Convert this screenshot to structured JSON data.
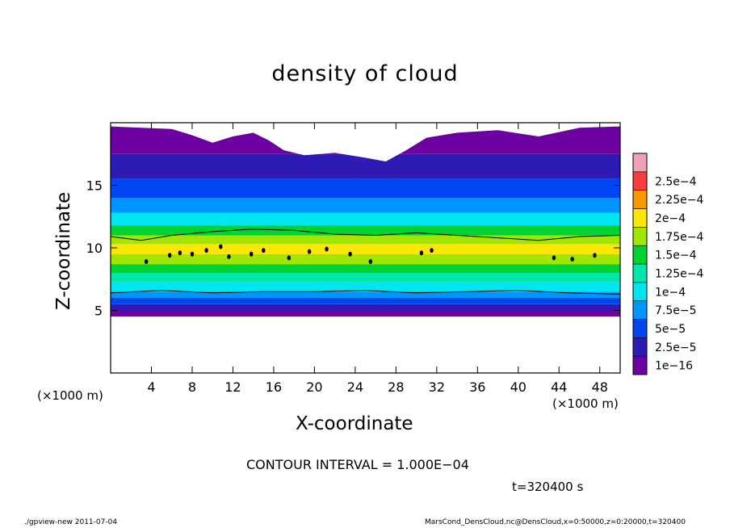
{
  "chart_data": {
    "type": "heatmap",
    "title": "density of cloud",
    "xlabel": "X-coordinate",
    "ylabel": "Z-coordinate",
    "x_unit": "(×1000 m)",
    "x_ticks": [
      4,
      8,
      12,
      16,
      20,
      24,
      28,
      32,
      36,
      40,
      44,
      48
    ],
    "y_ticks": [
      5,
      10,
      15
    ],
    "xlim": [
      0,
      50
    ],
    "ylim": [
      0,
      20
    ],
    "colorbar": {
      "levels": [
        "1e−16",
        "2.5e−5",
        "5e−5",
        "7.5e−5",
        "1e−4",
        "1.25e−4",
        "1.5e−4",
        "1.75e−4",
        "2e−4",
        "2.25e−4",
        "2.5e−4"
      ],
      "colors": [
        "#6c00a0",
        "#2e1ab4",
        "#0046f0",
        "#0096ff",
        "#00e6f0",
        "#00e6aa",
        "#00d232",
        "#a0e600",
        "#fae600",
        "#fa9600",
        "#fa3c3c",
        "#f0a0b4"
      ]
    },
    "contour_interval": "CONTOUR INTERVAL = 1.000E−04",
    "time": "t=320400 s",
    "profile": [
      {
        "z": 4.5,
        "level": 0
      },
      {
        "z": 5.0,
        "level": 1
      },
      {
        "z": 5.5,
        "level": 2
      },
      {
        "z": 6.0,
        "level": 3
      },
      {
        "z": 6.5,
        "level": 4
      },
      {
        "z": 7.3,
        "level": 5
      },
      {
        "z": 8.0,
        "level": 6
      },
      {
        "z": 8.7,
        "level": 7
      },
      {
        "z": 9.5,
        "level": 8
      },
      {
        "z": 10.3,
        "level": 7
      },
      {
        "z": 11.0,
        "level": 6
      },
      {
        "z": 11.8,
        "level": 4
      },
      {
        "z": 12.8,
        "level": 3
      },
      {
        "z": 14.0,
        "level": 2
      },
      {
        "z": 15.5,
        "level": 1
      },
      {
        "z": 17.5,
        "level": 0
      }
    ],
    "cloud_top": [
      {
        "x": 0,
        "z": 19.7
      },
      {
        "x": 3,
        "z": 19.6
      },
      {
        "x": 6,
        "z": 19.5
      },
      {
        "x": 8,
        "z": 19.0
      },
      {
        "x": 10,
        "z": 18.4
      },
      {
        "x": 12,
        "z": 18.9
      },
      {
        "x": 14,
        "z": 19.2
      },
      {
        "x": 15.5,
        "z": 18.6
      },
      {
        "x": 17,
        "z": 17.8
      },
      {
        "x": 19,
        "z": 17.4
      },
      {
        "x": 22,
        "z": 17.6
      },
      {
        "x": 25,
        "z": 17.2
      },
      {
        "x": 27,
        "z": 16.9
      },
      {
        "x": 29,
        "z": 17.8
      },
      {
        "x": 31,
        "z": 18.8
      },
      {
        "x": 34,
        "z": 19.2
      },
      {
        "x": 38,
        "z": 19.4
      },
      {
        "x": 42,
        "z": 18.9
      },
      {
        "x": 46,
        "z": 19.6
      },
      {
        "x": 50,
        "z": 19.7
      }
    ],
    "contour_lines": [
      {
        "value": "1e−4",
        "points": [
          {
            "x": 0,
            "z": 6.4
          },
          {
            "x": 5,
            "z": 6.6
          },
          {
            "x": 10,
            "z": 6.4
          },
          {
            "x": 15,
            "z": 6.5
          },
          {
            "x": 20,
            "z": 6.5
          },
          {
            "x": 25,
            "z": 6.6
          },
          {
            "x": 30,
            "z": 6.4
          },
          {
            "x": 35,
            "z": 6.5
          },
          {
            "x": 40,
            "z": 6.6
          },
          {
            "x": 45,
            "z": 6.4
          },
          {
            "x": 50,
            "z": 6.3
          }
        ]
      },
      {
        "value": "1e−4",
        "points": [
          {
            "x": 0,
            "z": 10.9
          },
          {
            "x": 3,
            "z": 10.6
          },
          {
            "x": 6,
            "z": 11.0
          },
          {
            "x": 10,
            "z": 11.3
          },
          {
            "x": 14,
            "z": 11.5
          },
          {
            "x": 18,
            "z": 11.4
          },
          {
            "x": 22,
            "z": 11.1
          },
          {
            "x": 26,
            "z": 11.0
          },
          {
            "x": 30,
            "z": 11.2
          },
          {
            "x": 34,
            "z": 11.0
          },
          {
            "x": 38,
            "z": 10.8
          },
          {
            "x": 42,
            "z": 10.6
          },
          {
            "x": 46,
            "z": 10.9
          },
          {
            "x": 50,
            "z": 11.0
          }
        ]
      }
    ],
    "peak_cells": [
      {
        "x": 3.5,
        "z": 8.9
      },
      {
        "x": 5.8,
        "z": 9.4
      },
      {
        "x": 6.8,
        "z": 9.6
      },
      {
        "x": 8.0,
        "z": 9.5
      },
      {
        "x": 9.4,
        "z": 9.8
      },
      {
        "x": 10.8,
        "z": 10.1
      },
      {
        "x": 11.6,
        "z": 9.3
      },
      {
        "x": 13.8,
        "z": 9.5
      },
      {
        "x": 15.0,
        "z": 9.8
      },
      {
        "x": 17.5,
        "z": 9.2
      },
      {
        "x": 19.5,
        "z": 9.7
      },
      {
        "x": 21.2,
        "z": 9.9
      },
      {
        "x": 23.5,
        "z": 9.5
      },
      {
        "x": 25.5,
        "z": 8.9
      },
      {
        "x": 30.5,
        "z": 9.6
      },
      {
        "x": 31.5,
        "z": 9.8
      },
      {
        "x": 43.5,
        "z": 9.2
      },
      {
        "x": 45.3,
        "z": 9.1
      },
      {
        "x": 47.5,
        "z": 9.4
      }
    ]
  },
  "footer": {
    "left": "./gpview-new   2011-07-04",
    "right": "MarsCond_DensCloud.nc@DensCloud,x=0:50000,z=0:20000,t=320400"
  }
}
